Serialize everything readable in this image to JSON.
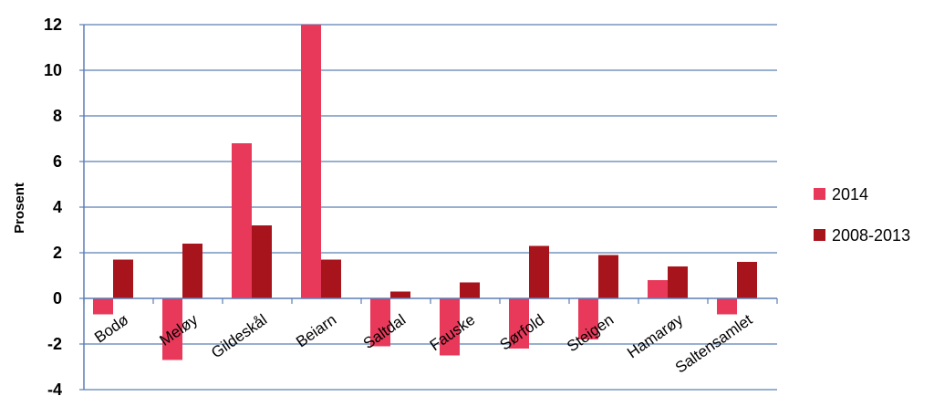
{
  "chart_data": {
    "type": "bar",
    "title": "",
    "xlabel": "",
    "ylabel": "Prosent",
    "ylim": [
      -4,
      12
    ],
    "yticks": [
      12,
      10,
      8,
      6,
      4,
      2,
      0,
      -2,
      -4
    ],
    "grid": true,
    "legend_position": "right",
    "categories": [
      "Bodø",
      "Meløy",
      "Gildeskål",
      "Beiarn",
      "Saltdal",
      "Fauske",
      "Sørfold",
      "Steigen",
      "Hamarøy",
      "Saltensamlet"
    ],
    "series": [
      {
        "name": "2014",
        "color": "#e8395a",
        "values": [
          -0.7,
          -2.7,
          6.8,
          12.0,
          -2.1,
          -2.5,
          -2.2,
          -1.8,
          0.8,
          -0.7
        ]
      },
      {
        "name": "2008-2013",
        "color": "#a8141c",
        "values": [
          1.7,
          2.4,
          3.2,
          1.7,
          0.3,
          0.7,
          2.3,
          1.9,
          1.4,
          1.6
        ]
      }
    ]
  }
}
